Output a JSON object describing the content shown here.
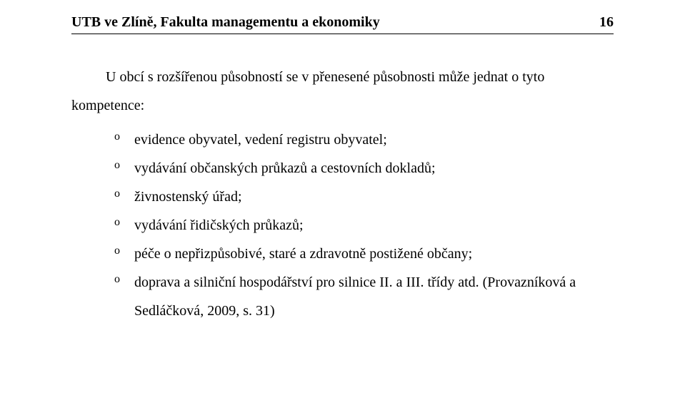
{
  "header": {
    "title": "UTB ve Zlíně, Fakulta managementu a ekonomiky",
    "page_number": "16"
  },
  "paragraph_text": "U obcí s rozšířenou působností se v přenesené působnosti může jednat o tyto kompetence:",
  "list_items": [
    "evidence obyvatel, vedení registru obyvatel;",
    "vydávání občanských průkazů a cestovních dokladů;",
    "živnostenský úřad;",
    "vydávání řidičských průkazů;",
    "péče o nepřizpůsobivé, staré a zdravotně postižené občany;",
    "doprava a silniční hospodářství pro silnice II. a III. třídy atd. (Provazníková a Sedláčková, 2009, s. 31)"
  ],
  "styles": {
    "background_color": "#ffffff",
    "text_color": "#000000",
    "font_family": "Times New Roman",
    "header_fontsize": 20,
    "body_fontsize": 20,
    "header_weight": "bold",
    "line_height": 2,
    "border_bottom_width": 1.5,
    "text_indent": 48,
    "list_indent": 60,
    "bullet_char": "o"
  }
}
